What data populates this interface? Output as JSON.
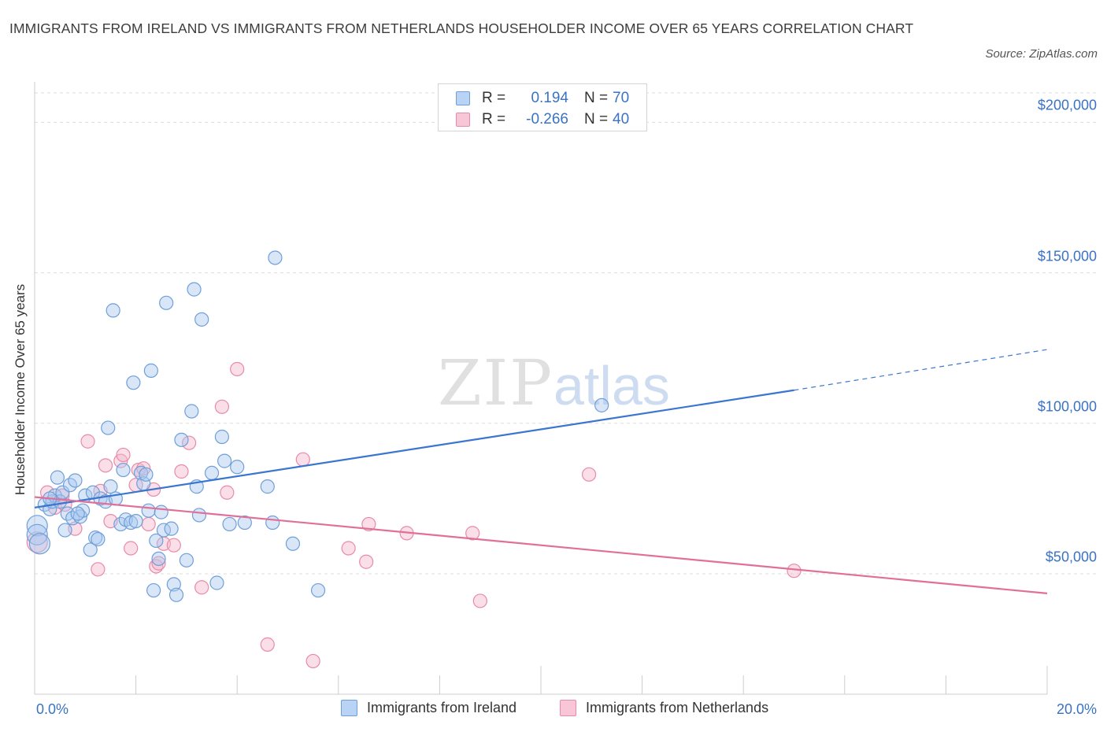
{
  "title": "IMMIGRANTS FROM IRELAND VS IMMIGRANTS FROM NETHERLANDS HOUSEHOLDER INCOME OVER 65 YEARS CORRELATION CHART",
  "source": "Source: ZipAtlas.com",
  "watermark": {
    "zip": "ZIP",
    "atlas": "atlas"
  },
  "colors": {
    "ireland_fill": "#a9c8f0",
    "ireland_stroke": "#6f9fd8",
    "ireland_line": "#3a76d0",
    "netherlands_fill": "#f5b8cc",
    "netherlands_stroke": "#e98aa8",
    "netherlands_line": "#e0709a",
    "axis_text": "#3a72c4",
    "grid": "#dddddd"
  },
  "legend_top": [
    {
      "r_label": "R =",
      "r_value": "0.194",
      "n_label": "N =",
      "n_value": "70",
      "series": "ireland"
    },
    {
      "r_label": "R =",
      "r_value": "-0.266",
      "n_label": "N =",
      "n_value": "40",
      "series": "netherlands"
    }
  ],
  "legend_bottom": [
    {
      "label": "Immigrants from Ireland",
      "series": "ireland"
    },
    {
      "label": "Immigrants from Netherlands",
      "series": "netherlands"
    }
  ],
  "chart_data": {
    "type": "scatter",
    "title": "IMMIGRANTS FROM IRELAND VS IMMIGRANTS FROM NETHERLANDS HOUSEHOLDER INCOME OVER 65 YEARS CORRELATION CHART",
    "xlabel": "",
    "ylabel": "Householder Income Over 65 years",
    "xlim": [
      0,
      20
    ],
    "ylim": [
      10000,
      215000
    ],
    "x_tick_labels": [
      "0.0%",
      "20.0%"
    ],
    "y_ticks": [
      50000,
      100000,
      150000,
      200000
    ],
    "y_tick_labels": [
      "$50,000",
      "$100,000",
      "$150,000",
      "$200,000"
    ],
    "grid": true,
    "legend_position": "top-center",
    "series": [
      {
        "name": "Immigrants from Ireland",
        "key": "ireland",
        "trend": {
          "x": [
            0.0,
            15.0
          ],
          "y": [
            72000,
            111000
          ],
          "dashed_to": [
            20.0,
            124500
          ]
        },
        "points": [
          [
            0.05,
            66000,
            2
          ],
          [
            0.05,
            63000,
            2
          ],
          [
            0.1,
            60000,
            2
          ],
          [
            0.2,
            73000,
            1
          ],
          [
            0.3,
            71500,
            1
          ],
          [
            0.35,
            74000,
            1
          ],
          [
            0.4,
            76000,
            1
          ],
          [
            0.45,
            82000,
            1
          ],
          [
            0.5,
            74000,
            1
          ],
          [
            0.55,
            77000,
            1
          ],
          [
            0.6,
            64500,
            1
          ],
          [
            0.65,
            70000,
            1
          ],
          [
            0.7,
            79500,
            1
          ],
          [
            0.75,
            68500,
            1
          ],
          [
            0.8,
            81000,
            1
          ],
          [
            0.9,
            69000,
            1
          ],
          [
            0.95,
            71000,
            1
          ],
          [
            1.0,
            76000,
            1
          ],
          [
            1.1,
            58000,
            1
          ],
          [
            1.15,
            77000,
            1
          ],
          [
            1.2,
            62000,
            1
          ],
          [
            1.25,
            61500,
            1
          ],
          [
            1.3,
            75000,
            1
          ],
          [
            1.4,
            74000,
            1
          ],
          [
            1.45,
            98500,
            1
          ],
          [
            1.5,
            79000,
            1
          ],
          [
            1.55,
            137500,
            1
          ],
          [
            1.6,
            75000,
            1
          ],
          [
            1.7,
            66500,
            1
          ],
          [
            1.75,
            84500,
            1
          ],
          [
            1.8,
            68000,
            1
          ],
          [
            1.9,
            67000,
            1
          ],
          [
            1.95,
            113500,
            1
          ],
          [
            2.0,
            67500,
            1
          ],
          [
            2.1,
            83500,
            1
          ],
          [
            2.15,
            80000,
            1
          ],
          [
            2.2,
            83000,
            1
          ],
          [
            2.25,
            71000,
            1
          ],
          [
            2.3,
            117500,
            1
          ],
          [
            2.35,
            44500,
            1
          ],
          [
            2.4,
            61000,
            1
          ],
          [
            2.45,
            55000,
            1
          ],
          [
            2.5,
            70500,
            1
          ],
          [
            2.55,
            64500,
            1
          ],
          [
            2.6,
            140000,
            1
          ],
          [
            2.7,
            65000,
            1
          ],
          [
            2.75,
            46500,
            1
          ],
          [
            2.8,
            43000,
            1
          ],
          [
            2.9,
            94500,
            1
          ],
          [
            3.0,
            54500,
            1
          ],
          [
            3.1,
            104000,
            1
          ],
          [
            3.15,
            144500,
            1
          ],
          [
            3.2,
            79000,
            1
          ],
          [
            3.25,
            69500,
            1
          ],
          [
            3.3,
            134500,
            1
          ],
          [
            3.5,
            83500,
            1
          ],
          [
            3.6,
            47000,
            1
          ],
          [
            3.7,
            95500,
            1
          ],
          [
            3.75,
            87500,
            1
          ],
          [
            3.85,
            66500,
            1
          ],
          [
            4.0,
            85500,
            1
          ],
          [
            4.15,
            67000,
            1
          ],
          [
            4.6,
            79000,
            1
          ],
          [
            4.7,
            67000,
            1
          ],
          [
            4.75,
            155000,
            1
          ],
          [
            5.1,
            60000,
            1
          ],
          [
            5.6,
            44500,
            1
          ],
          [
            11.2,
            106000,
            1
          ],
          [
            0.3,
            75000,
            1
          ],
          [
            0.85,
            70000,
            1
          ]
        ]
      },
      {
        "name": "Immigrants from Netherlands",
        "key": "netherlands",
        "trend": {
          "x": [
            0.0,
            20.0
          ],
          "y": [
            75500,
            43500
          ]
        },
        "points": [
          [
            0.05,
            60500,
            2
          ],
          [
            0.25,
            77000,
            1
          ],
          [
            0.4,
            72000,
            1
          ],
          [
            0.55,
            76000,
            1
          ],
          [
            0.8,
            65000,
            1
          ],
          [
            1.05,
            94000,
            1
          ],
          [
            1.25,
            51500,
            1
          ],
          [
            1.3,
            77500,
            1
          ],
          [
            1.4,
            86000,
            1
          ],
          [
            1.5,
            67500,
            1
          ],
          [
            1.7,
            87500,
            1
          ],
          [
            1.75,
            89500,
            1
          ],
          [
            1.9,
            58500,
            1
          ],
          [
            2.0,
            79500,
            1
          ],
          [
            2.05,
            84500,
            1
          ],
          [
            2.15,
            85000,
            1
          ],
          [
            2.25,
            66500,
            1
          ],
          [
            2.4,
            52500,
            1
          ],
          [
            2.45,
            53500,
            1
          ],
          [
            2.55,
            60000,
            1
          ],
          [
            2.75,
            59500,
            1
          ],
          [
            2.9,
            84000,
            1
          ],
          [
            3.05,
            93500,
            1
          ],
          [
            3.3,
            45500,
            1
          ],
          [
            3.7,
            105500,
            1
          ],
          [
            3.8,
            77000,
            1
          ],
          [
            4.0,
            118000,
            1
          ],
          [
            4.6,
            26500,
            1
          ],
          [
            5.3,
            88000,
            1
          ],
          [
            5.5,
            21000,
            1
          ],
          [
            6.2,
            58500,
            1
          ],
          [
            6.55,
            54000,
            1
          ],
          [
            6.6,
            66500,
            1
          ],
          [
            7.35,
            63500,
            1
          ],
          [
            8.65,
            63500,
            1
          ],
          [
            8.8,
            41000,
            1
          ],
          [
            10.95,
            83000,
            1
          ],
          [
            15.0,
            51000,
            1
          ],
          [
            0.6,
            73000,
            1
          ],
          [
            2.35,
            78000,
            1
          ]
        ]
      }
    ]
  }
}
